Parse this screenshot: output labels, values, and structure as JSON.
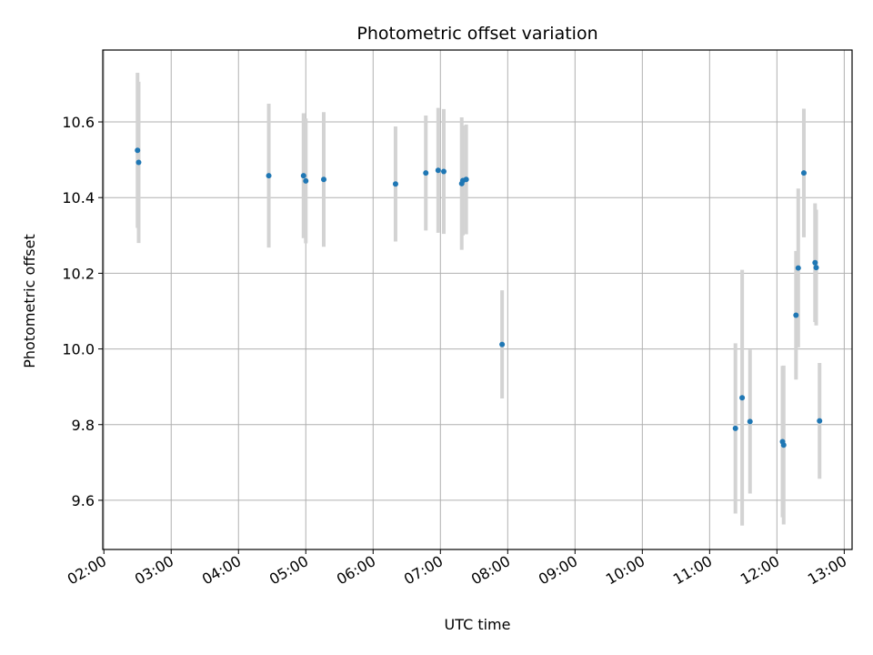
{
  "chart_data": {
    "type": "scatter",
    "title": "Photometric offset variation",
    "xlabel": "UTC time",
    "ylabel": "Photometric offset",
    "x_is_time": true,
    "xlim": [
      "01:59",
      "13:07"
    ],
    "ylim": [
      9.47,
      10.79
    ],
    "xticks": [
      "02:00",
      "03:00",
      "04:00",
      "05:00",
      "06:00",
      "07:00",
      "08:00",
      "09:00",
      "10:00",
      "11:00",
      "12:00",
      "13:00"
    ],
    "yticks": [
      9.6,
      9.8,
      10.0,
      10.2,
      10.4,
      10.6
    ],
    "ytick_labels": [
      "9.6",
      "9.8",
      "10.0",
      "10.2",
      "10.4",
      "10.6"
    ],
    "grid": true,
    "point_color": "#1f77b4",
    "errorbar_color": "#d3d3d3",
    "points": [
      {
        "x": "02:30",
        "y": 10.525,
        "yerr": 0.205
      },
      {
        "x": "02:31",
        "y": 10.493,
        "yerr": 0.213
      },
      {
        "x": "04:27",
        "y": 10.458,
        "yerr": 0.19
      },
      {
        "x": "04:58",
        "y": 10.458,
        "yerr": 0.165
      },
      {
        "x": "05:00",
        "y": 10.444,
        "yerr": 0.165
      },
      {
        "x": "05:16",
        "y": 10.448,
        "yerr": 0.178
      },
      {
        "x": "06:20",
        "y": 10.436,
        "yerr": 0.152
      },
      {
        "x": "06:47",
        "y": 10.465,
        "yerr": 0.152
      },
      {
        "x": "06:58",
        "y": 10.472,
        "yerr": 0.165
      },
      {
        "x": "07:03",
        "y": 10.469,
        "yerr": 0.165
      },
      {
        "x": "07:19",
        "y": 10.437,
        "yerr": 0.175
      },
      {
        "x": "07:20",
        "y": 10.445,
        "yerr": 0.145
      },
      {
        "x": "07:23",
        "y": 10.448,
        "yerr": 0.145
      },
      {
        "x": "07:55",
        "y": 10.012,
        "yerr": 0.143
      },
      {
        "x": "11:23",
        "y": 9.79,
        "yerr": 0.225
      },
      {
        "x": "11:29",
        "y": 9.871,
        "yerr": 0.338
      },
      {
        "x": "11:36",
        "y": 9.808,
        "yerr": 0.19
      },
      {
        "x": "12:05",
        "y": 9.755,
        "yerr": 0.2
      },
      {
        "x": "12:06",
        "y": 9.746,
        "yerr": 0.21
      },
      {
        "x": "12:17",
        "y": 10.089,
        "yerr": 0.17
      },
      {
        "x": "12:19",
        "y": 10.214,
        "yerr": 0.21
      },
      {
        "x": "12:24",
        "y": 10.465,
        "yerr": 0.17
      },
      {
        "x": "12:34",
        "y": 10.228,
        "yerr": 0.157
      },
      {
        "x": "12:35",
        "y": 10.215,
        "yerr": 0.153
      },
      {
        "x": "12:38",
        "y": 9.81,
        "yerr": 0.153
      }
    ]
  }
}
